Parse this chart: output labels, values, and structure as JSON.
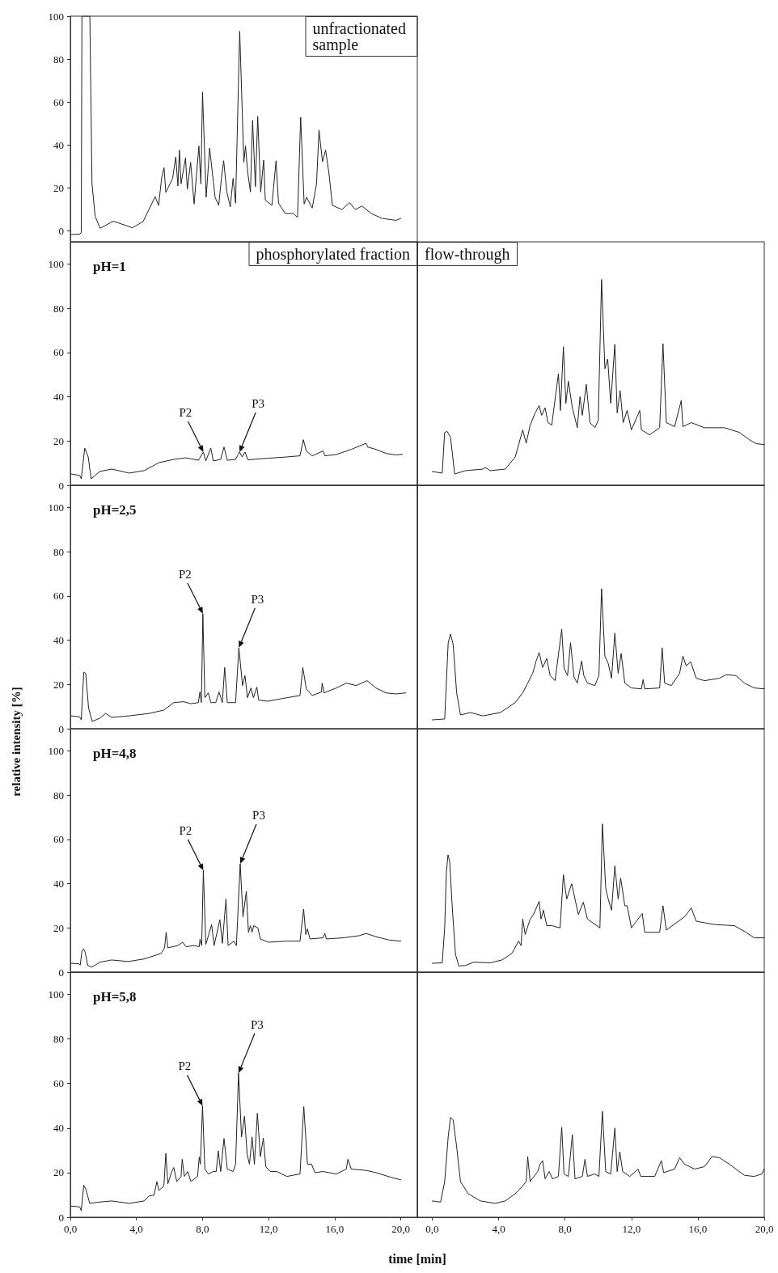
{
  "chart_data": [
    {
      "type": "line",
      "title": "unfractionated sample",
      "color": "#222222",
      "xlim": [
        0,
        21
      ],
      "ylim": [
        -5,
        100
      ],
      "yticks": [
        0,
        20,
        40,
        60,
        80,
        100
      ],
      "xticks": [
        {
          "value": 0,
          "label": "0,0"
        },
        {
          "value": 4,
          "label": "4,0"
        },
        {
          "value": 8,
          "label": "8,0"
        },
        {
          "value": 12,
          "label": "12,0"
        },
        {
          "value": 16,
          "label": "16,0"
        },
        {
          "value": 20,
          "label": "20,0"
        }
      ],
      "tick_labels": "y",
      "x": [
        0.04,
        0.58,
        0.66,
        0.7,
        1.18,
        1.31,
        1.5,
        1.8,
        2.6,
        3.4,
        3.75,
        4.4,
        5.13,
        5.34,
        5.53,
        5.67,
        5.78,
        6.19,
        6.38,
        6.51,
        6.6,
        6.7,
        6.97,
        7.08,
        7.28,
        7.49,
        7.78,
        7.9,
        8.0,
        8.22,
        8.43,
        8.76,
        8.98,
        9.15,
        9.28,
        9.47,
        9.68,
        9.85,
        10.0,
        10.25,
        10.5,
        10.6,
        10.74,
        10.9,
        11.03,
        11.2,
        11.34,
        11.52,
        11.7,
        11.8,
        12.2,
        12.45,
        12.6,
        13.0,
        13.5,
        13.75,
        13.94,
        14.15,
        14.3,
        14.64,
        14.9,
        15.05,
        15.26,
        15.45,
        15.65,
        15.86,
        16.43,
        16.9,
        17.25,
        17.65,
        18.2,
        18.87,
        19.7,
        20.0
      ],
      "values": [
        -1.6,
        -1.4,
        -0.6,
        100,
        100,
        22,
        6.9,
        1.3,
        4.6,
        2.5,
        1.5,
        4.4,
        16,
        12,
        25,
        29.5,
        18,
        24.5,
        34.5,
        21,
        37.7,
        22,
        34,
        19.5,
        32,
        12.6,
        39.6,
        22,
        64.7,
        15.7,
        38.6,
        15.7,
        12,
        25,
        32.7,
        18.2,
        11.3,
        24.5,
        13,
        93,
        32,
        39.6,
        27,
        18.2,
        51.5,
        20.7,
        53.4,
        18.2,
        33,
        14.4,
        12,
        32.7,
        13,
        8.2,
        8.2,
        6.3,
        53,
        12.6,
        15.7,
        10.7,
        22,
        47,
        32.3,
        37.7,
        27,
        12,
        10,
        13.2,
        10,
        11.7,
        8.2,
        5.9,
        5,
        5.9
      ]
    },
    {
      "type": "line",
      "title": "phosphorylated fraction",
      "annotations": [
        "pH=1",
        {
          "text": "P2",
          "x": 8.05,
          "y": 15
        },
        {
          "text": "P3",
          "x": 10.24,
          "y": 15
        }
      ],
      "color": "#222222",
      "xlim": [
        0,
        21
      ],
      "ylim": [
        0,
        110
      ],
      "yticks": [
        0,
        20,
        40,
        60,
        80,
        100
      ],
      "xticks": [
        {
          "value": 0,
          "label": "0,0"
        },
        {
          "value": 4,
          "label": "4,0"
        },
        {
          "value": 8,
          "label": "8,0"
        },
        {
          "value": 12,
          "label": "12,0"
        },
        {
          "value": 16,
          "label": "16,0"
        },
        {
          "value": 20,
          "label": "20,0"
        }
      ],
      "tick_labels": "y",
      "x": [
        0.06,
        0.57,
        0.66,
        0.87,
        1.08,
        1.26,
        1.77,
        2.5,
        3.56,
        4.46,
        5.36,
        6.26,
        7.0,
        7.75,
        8.05,
        8.2,
        8.5,
        8.65,
        9.1,
        9.3,
        9.5,
        10.0,
        10.24,
        10.4,
        10.57,
        10.75,
        11.95,
        13.1,
        13.9,
        14.1,
        14.28,
        14.64,
        15.3,
        15.4,
        16.1,
        17.0,
        17.9,
        18.0,
        18.5,
        19.1,
        19.7,
        20.1
      ],
      "values": [
        5.1,
        4.4,
        2.9,
        16.8,
        12.8,
        2.9,
        6.2,
        7.3,
        5.5,
        6.6,
        10.2,
        11.7,
        12.4,
        11.3,
        15,
        11,
        16.8,
        11,
        11.7,
        17.3,
        11.3,
        11.7,
        15,
        12.8,
        15,
        11.5,
        12.2,
        12.8,
        13.3,
        20.6,
        15.5,
        13.3,
        15.5,
        13.3,
        13.9,
        16.2,
        19,
        17.3,
        16.2,
        14.4,
        13.7,
        14
      ]
    },
    {
      "type": "line",
      "title": "flow-through",
      "color": "#222222",
      "xlim": [
        -0.9,
        20
      ],
      "ylim": [
        0,
        110
      ],
      "yticks": [
        0,
        20,
        40,
        60,
        80,
        100
      ],
      "xticks": [
        {
          "value": 0,
          "label": "0,0"
        },
        {
          "value": 4,
          "label": "4,0"
        },
        {
          "value": 8,
          "label": "8,0"
        },
        {
          "value": 12,
          "label": "12,0"
        },
        {
          "value": 16,
          "label": "16,0"
        },
        {
          "value": 20,
          "label": "20,0"
        }
      ],
      "tick_labels": false,
      "x": [
        0,
        0.6,
        0.75,
        0.9,
        1.1,
        1.35,
        2.0,
        3.05,
        3.2,
        3.5,
        4.4,
        5.0,
        5.45,
        5.66,
        5.9,
        6.2,
        6.44,
        6.59,
        6.8,
        6.97,
        7.2,
        7.6,
        7.72,
        7.9,
        8.05,
        8.2,
        8.44,
        8.74,
        8.9,
        9.04,
        9.28,
        9.5,
        9.8,
        10.0,
        10.2,
        10.4,
        10.57,
        10.75,
        11.0,
        11.14,
        11.32,
        11.5,
        11.74,
        12.0,
        12.5,
        12.6,
        13.1,
        13.7,
        13.9,
        14.1,
        14.6,
        15.0,
        15.1,
        15.6,
        16.4,
        17.6,
        18.5,
        19.1,
        19.5,
        20
      ],
      "values": [
        6.2,
        5.5,
        23.9,
        24.3,
        21.7,
        5.1,
        6.6,
        7.3,
        8,
        6.6,
        7.3,
        12.8,
        25,
        19,
        27.2,
        32.7,
        36,
        31.6,
        35,
        28.3,
        27.2,
        50.4,
        33.8,
        62.6,
        37,
        47,
        35,
        26,
        40,
        31.6,
        45.6,
        28.3,
        26,
        29.4,
        93,
        52.7,
        57,
        37,
        63.7,
        32.7,
        42.7,
        28.3,
        33.8,
        25,
        33.8,
        25,
        22.8,
        26,
        64,
        28.3,
        26.5,
        38.3,
        26.5,
        28.3,
        26,
        26,
        23.9,
        20.6,
        18.8,
        18.4
      ]
    },
    {
      "type": "line",
      "annotations": [
        "pH=2,5",
        {
          "text": "P2",
          "x": 8.02,
          "y": 52
        },
        {
          "text": "P3",
          "x": 10.2,
          "y": 36.6
        }
      ],
      "color": "#222222",
      "xlim": [
        0,
        21
      ],
      "ylim": [
        0,
        110
      ],
      "yticks": [
        0,
        20,
        40,
        60,
        80,
        100
      ],
      "xticks": [
        {
          "value": 0,
          "label": "0,0"
        },
        {
          "value": 4,
          "label": "4,0"
        },
        {
          "value": 8,
          "label": "8,0"
        },
        {
          "value": 12,
          "label": "12,0"
        },
        {
          "value": 16,
          "label": "16,0"
        },
        {
          "value": 20,
          "label": "20,0"
        }
      ],
      "tick_labels": "y",
      "x": [
        0.06,
        0.57,
        0.66,
        0.81,
        0.93,
        1.1,
        1.32,
        1.77,
        2.13,
        2.5,
        3.56,
        4.76,
        5.66,
        6.26,
        6.86,
        7.3,
        7.75,
        7.84,
        7.93,
        8.02,
        8.14,
        8.35,
        8.5,
        8.8,
        9.0,
        9.2,
        9.34,
        9.5,
        10.0,
        10.2,
        10.42,
        10.57,
        10.72,
        10.93,
        11.08,
        11.29,
        11.4,
        11.95,
        13.1,
        13.9,
        14.07,
        14.28,
        14.64,
        15.2,
        15.24,
        15.36,
        16.1,
        16.7,
        17.3,
        17.96,
        18.5,
        19.1,
        19.7,
        20.3
      ],
      "values": [
        5.8,
        5.3,
        4,
        25.5,
        25,
        9.5,
        3.3,
        4.7,
        6.9,
        5.1,
        5.8,
        6.9,
        8.4,
        11.8,
        12.2,
        11.3,
        11.8,
        16.6,
        11.8,
        52,
        14,
        16.2,
        11.8,
        11.8,
        16.6,
        11.8,
        27.7,
        11.8,
        11.8,
        36.6,
        19.5,
        24,
        14,
        18.4,
        14,
        18.8,
        12.9,
        12.4,
        14,
        15,
        27.7,
        18,
        15,
        16.6,
        20.6,
        16.2,
        18.4,
        20.6,
        19.5,
        21.7,
        18.4,
        16.2,
        15.7,
        16.2
      ]
    },
    {
      "type": "line",
      "color": "#222222",
      "xlim": [
        -0.9,
        20
      ],
      "ylim": [
        0,
        110
      ],
      "yticks": [
        0,
        20,
        40,
        60,
        80,
        100
      ],
      "xticks": [
        {
          "value": 0,
          "label": "0,0"
        },
        {
          "value": 4,
          "label": "4,0"
        },
        {
          "value": 8,
          "label": "8,0"
        },
        {
          "value": 12,
          "label": "12,0"
        },
        {
          "value": 16,
          "label": "16,0"
        },
        {
          "value": 20,
          "label": "20,0"
        }
      ],
      "tick_labels": false,
      "x": [
        0,
        0.75,
        0.96,
        1.1,
        1.26,
        1.47,
        1.7,
        2.3,
        3.05,
        4.1,
        5.0,
        5.45,
        5.75,
        6.05,
        6.26,
        6.44,
        6.65,
        6.9,
        7.1,
        7.4,
        7.8,
        7.94,
        8.15,
        8.33,
        8.54,
        8.74,
        9.0,
        9.13,
        9.35,
        9.8,
        10.04,
        10.2,
        10.4,
        10.6,
        10.8,
        11.0,
        11.2,
        11.38,
        11.6,
        12.0,
        12.6,
        12.7,
        12.8,
        13.7,
        13.85,
        14.0,
        14.4,
        14.9,
        15.1,
        15.3,
        15.57,
        15.9,
        16.4,
        17.3,
        17.7,
        18.3,
        18.8,
        19.4,
        20
      ],
      "values": [
        4,
        4.4,
        38.8,
        42.8,
        38,
        16.2,
        6.2,
        7.3,
        5.8,
        7.3,
        11.8,
        16.2,
        20.6,
        25,
        30.6,
        34.4,
        27.7,
        31.7,
        24,
        21.7,
        45,
        27.3,
        24,
        38.8,
        23.3,
        20.6,
        30.6,
        24,
        20.6,
        19.5,
        24,
        63.2,
        32.8,
        29.5,
        22.8,
        43.2,
        25,
        34,
        20.6,
        18.4,
        18,
        22.2,
        18,
        18.4,
        36.6,
        20.6,
        19.5,
        25,
        32.8,
        28.4,
        30.2,
        22.8,
        21.7,
        22.8,
        24.4,
        24,
        20.6,
        18.4,
        18
      ]
    },
    {
      "type": "line",
      "ylabel": "relative intensity [%]",
      "annotations": [
        "pH=4,8",
        {
          "text": "P2",
          "x": 8.05,
          "y": 46
        },
        {
          "text": "P3",
          "x": 10.28,
          "y": 49
        }
      ],
      "color": "#222222",
      "xlim": [
        0,
        21
      ],
      "ylim": [
        0,
        110
      ],
      "yticks": [
        0,
        20,
        40,
        60,
        80,
        100
      ],
      "xticks": [
        {
          "value": 0,
          "label": "0,0"
        },
        {
          "value": 4,
          "label": "4,0"
        },
        {
          "value": 8,
          "label": "8,0"
        },
        {
          "value": 12,
          "label": "12,0"
        },
        {
          "value": 16,
          "label": "16,0"
        },
        {
          "value": 20,
          "label": "20,0"
        }
      ],
      "tick_labels": "y",
      "x": [
        0.06,
        0.5,
        0.6,
        0.7,
        0.8,
        0.9,
        1.05,
        1.3,
        1.8,
        2.5,
        3.5,
        4.5,
        5.5,
        5.7,
        5.8,
        5.9,
        6.5,
        6.8,
        7.0,
        7.5,
        7.8,
        7.85,
        7.95,
        8.05,
        8.2,
        8.55,
        8.7,
        9.05,
        9.2,
        9.42,
        9.55,
        9.9,
        10.05,
        10.28,
        10.45,
        10.65,
        10.78,
        10.9,
        11.0,
        11.1,
        11.35,
        11.5,
        12.0,
        13.0,
        13.9,
        14.12,
        14.25,
        14.35,
        14.5,
        15.3,
        15.4,
        15.5,
        16.5,
        17.5,
        17.9,
        18.5,
        19.3,
        20.0
      ],
      "values": [
        4,
        3.8,
        3.2,
        9.5,
        10.5,
        9,
        3,
        2.3,
        4.5,
        5.5,
        4.8,
        6,
        8.5,
        11,
        18,
        11,
        12,
        13.5,
        11.5,
        12,
        11.5,
        15,
        12,
        46,
        12.5,
        21.5,
        12,
        23.7,
        13,
        33,
        12,
        14,
        12,
        49,
        25,
        36.5,
        18,
        21,
        18,
        21,
        20,
        15,
        13.5,
        14,
        14,
        28.5,
        17,
        19.5,
        15,
        15.5,
        17.5,
        15,
        15.5,
        16.5,
        17.5,
        16,
        14.5,
        14
      ]
    },
    {
      "type": "line",
      "color": "#222222",
      "xlim": [
        -0.9,
        20
      ],
      "ylim": [
        0,
        110
      ],
      "yticks": [
        0,
        20,
        40,
        60,
        80,
        100
      ],
      "xticks": [
        {
          "value": 0,
          "label": "0,0"
        },
        {
          "value": 4,
          "label": "4,0"
        },
        {
          "value": 8,
          "label": "8,0"
        },
        {
          "value": 12,
          "label": "12,0"
        },
        {
          "value": 16,
          "label": "16,0"
        },
        {
          "value": 20,
          "label": "20,0"
        }
      ],
      "tick_labels": false,
      "x": [
        0,
        0.6,
        0.75,
        0.85,
        0.95,
        1.05,
        1.2,
        1.4,
        1.6,
        2.0,
        2.5,
        3.5,
        4.2,
        4.8,
        5.2,
        5.35,
        5.45,
        5.6,
        5.9,
        6.1,
        6.44,
        6.55,
        6.7,
        6.9,
        7.2,
        7.7,
        7.9,
        8.1,
        8.4,
        8.8,
        9.1,
        9.35,
        10.1,
        10.25,
        10.45,
        10.6,
        10.8,
        11.0,
        11.2,
        11.35,
        11.6,
        11.74,
        12.0,
        12.65,
        12.8,
        13.7,
        13.9,
        14.1,
        15.2,
        15.6,
        15.9,
        17.0,
        18.2,
        18.9,
        19.4,
        20
      ],
      "values": [
        4,
        4.2,
        20,
        45,
        53,
        50,
        30,
        8,
        2.8,
        3,
        4.5,
        4.2,
        5.5,
        8.5,
        14,
        12,
        24,
        17,
        24,
        26,
        32,
        24,
        28,
        21,
        21,
        20,
        44,
        33,
        40,
        26,
        31.6,
        24,
        20,
        67,
        38,
        33,
        28,
        48,
        33,
        42.5,
        30,
        30,
        20,
        26.5,
        18,
        18,
        30,
        19,
        25,
        29,
        23,
        21.5,
        21,
        18,
        15.5,
        15.5
      ]
    },
    {
      "type": "line",
      "xlabel": "time [min]",
      "annotations": [
        "pH=5,8",
        {
          "text": "P2",
          "x": 8.0,
          "y": 50
        },
        {
          "text": "P3",
          "x": 10.18,
          "y": 64.7
        }
      ],
      "color": "#222222",
      "xlim": [
        0,
        21
      ],
      "ylim": [
        0,
        110
      ],
      "yticks": [
        0,
        20,
        40,
        60,
        80,
        100
      ],
      "xticks": [
        {
          "value": 0,
          "label": "0,0"
        },
        {
          "value": 4,
          "label": "4,0"
        },
        {
          "value": 8,
          "label": "8,0"
        },
        {
          "value": 12,
          "label": "12,0"
        },
        {
          "value": 16,
          "label": "16,0"
        },
        {
          "value": 20,
          "label": "20,0"
        }
      ],
      "x": [
        0.06,
        0.57,
        0.66,
        0.81,
        0.93,
        1.17,
        1.77,
        2.5,
        3.56,
        4.46,
        4.76,
        5.06,
        5.24,
        5.36,
        5.66,
        5.78,
        5.9,
        6.14,
        6.26,
        6.44,
        6.7,
        6.77,
        6.9,
        7.1,
        7.3,
        7.7,
        7.8,
        7.87,
        8.0,
        8.14,
        8.35,
        8.65,
        8.83,
        8.95,
        9.1,
        9.3,
        9.5,
        9.85,
        10.0,
        10.18,
        10.36,
        10.54,
        10.7,
        10.84,
        11.0,
        11.14,
        11.32,
        11.5,
        11.68,
        11.83,
        12.1,
        12.5,
        13.1,
        13.9,
        14.13,
        14.35,
        14.6,
        14.8,
        15.3,
        16.1,
        16.7,
        16.8,
        17.0,
        17.9,
        18.5,
        19.4,
        20.0
      ],
      "values": [
        5,
        4.6,
        2.9,
        14.3,
        12.8,
        6.2,
        6.8,
        7.3,
        6.2,
        7.3,
        9.5,
        9.9,
        16,
        12,
        14,
        28.7,
        15,
        20.5,
        22.3,
        16,
        18.3,
        26,
        18.3,
        20.5,
        16,
        18.3,
        27,
        23.8,
        50,
        21.6,
        19.4,
        20.5,
        20.5,
        29.8,
        20.5,
        35.3,
        21.6,
        20.5,
        23.8,
        64.7,
        36,
        45.3,
        28.3,
        23.8,
        36,
        23.8,
        46.6,
        27.2,
        35.5,
        22.7,
        20.5,
        20.5,
        18.3,
        19.4,
        49.7,
        23.8,
        23.8,
        20,
        20.5,
        19.4,
        21.6,
        26,
        21.6,
        21,
        20,
        17.9,
        16.8
      ]
    },
    {
      "type": "line",
      "color": "#222222",
      "xlim": [
        -0.9,
        20
      ],
      "ylim": [
        0,
        110
      ],
      "yticks": [
        0,
        20,
        40,
        60,
        80,
        100
      ],
      "xticks": [
        {
          "value": 0,
          "label": "0,0"
        },
        {
          "value": 4,
          "label": "4,0"
        },
        {
          "value": 8,
          "label": "8,0"
        },
        {
          "value": 12,
          "label": "12,0"
        },
        {
          "value": 16,
          "label": "16,0"
        },
        {
          "value": 20,
          "label": "20,0"
        }
      ],
      "tick_labels": "x",
      "x": [
        0,
        0.5,
        0.75,
        0.96,
        1.1,
        1.26,
        1.47,
        1.7,
        2.16,
        2.9,
        3.8,
        4.4,
        5.0,
        5.45,
        5.66,
        5.75,
        5.9,
        6.35,
        6.5,
        6.65,
        6.8,
        7.04,
        7.25,
        7.6,
        7.8,
        7.94,
        8.2,
        8.44,
        8.6,
        9.04,
        9.2,
        9.35,
        9.8,
        10.04,
        10.25,
        10.45,
        10.75,
        11.0,
        11.14,
        11.3,
        11.47,
        11.9,
        12.4,
        12.56,
        13.4,
        13.8,
        13.94,
        14.6,
        14.9,
        15.2,
        15.8,
        16.4,
        16.85,
        17.3,
        17.9,
        18.8,
        19.4,
        19.85,
        20
      ],
      "values": [
        7.3,
        6.8,
        16,
        36,
        44.8,
        43.7,
        31.6,
        16,
        10.6,
        7.3,
        6.2,
        7.3,
        10.6,
        14,
        16,
        27.2,
        16,
        20.5,
        23.8,
        25.4,
        17.2,
        20.5,
        17.2,
        18.3,
        40.4,
        19.4,
        18.3,
        37,
        17.2,
        18.3,
        26,
        18.3,
        19.4,
        18.3,
        47.5,
        20.5,
        19.4,
        40,
        20.5,
        29.4,
        20.5,
        18.3,
        21.6,
        18.3,
        18.3,
        25.4,
        20,
        21.6,
        26.7,
        23.8,
        21.6,
        22.7,
        27.2,
        26.7,
        23.8,
        18.8,
        18.3,
        19.4,
        21.6
      ]
    }
  ]
}
